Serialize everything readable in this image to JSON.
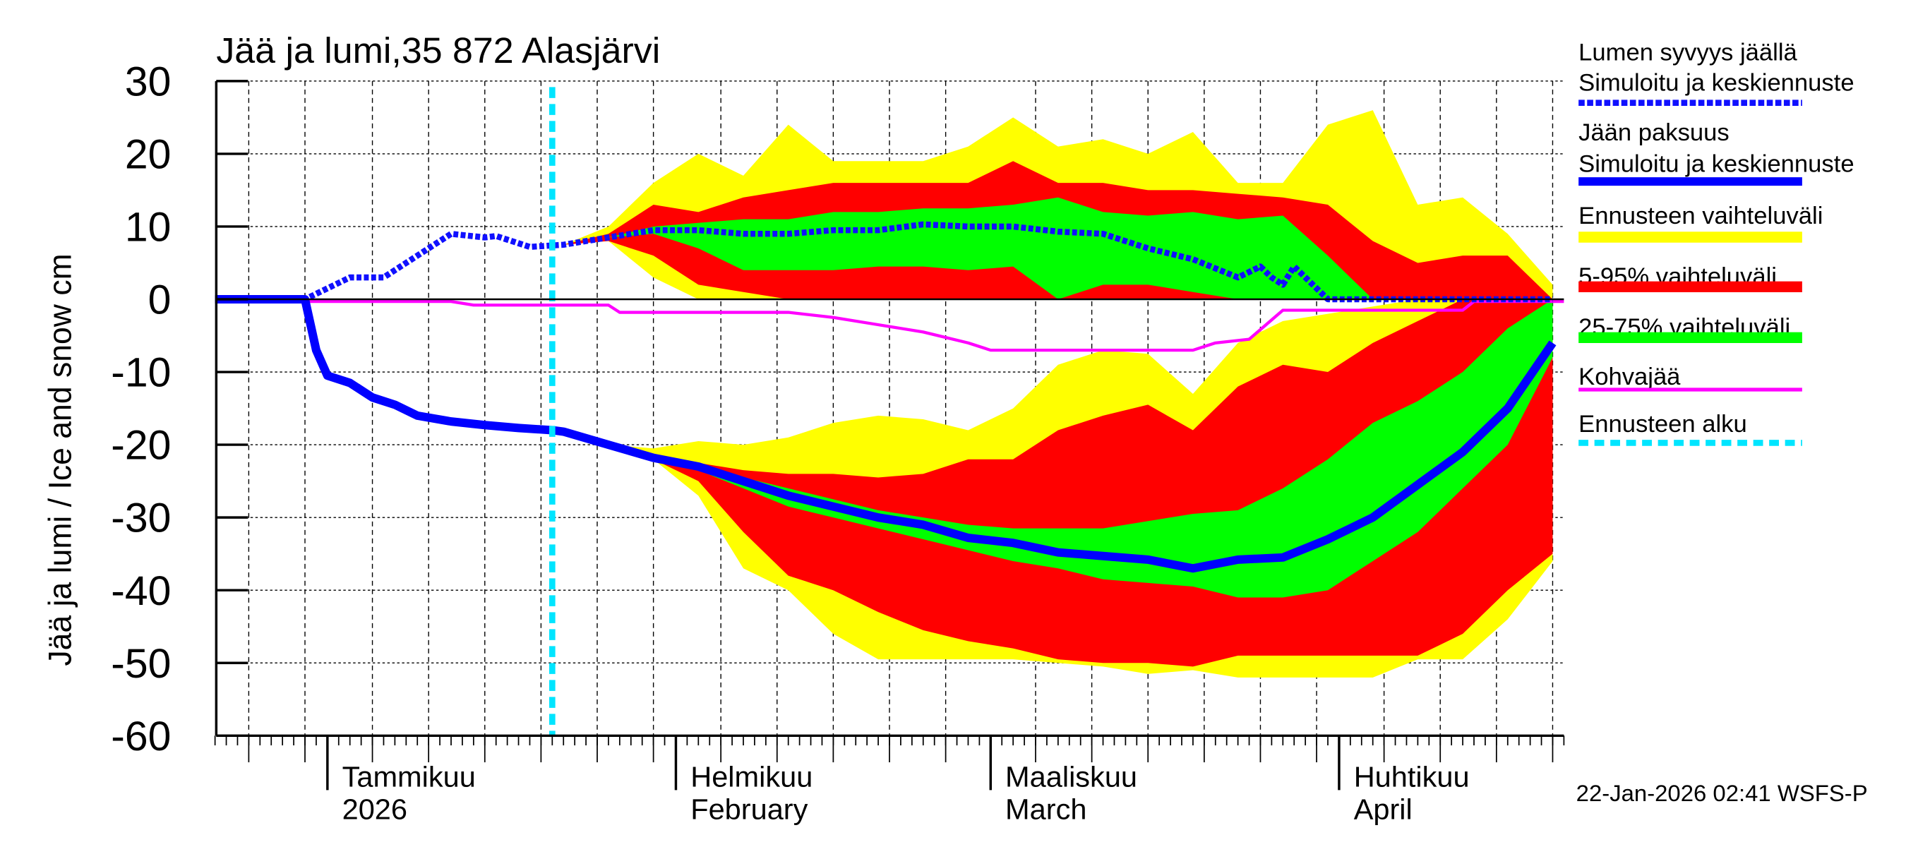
{
  "chart_data": {
    "type": "area",
    "title": "Jää ja lumi,35 872 Alasjärvi",
    "ylabel": "Jää ja lumi / Ice and snow    cm",
    "ylim": [
      -60,
      30
    ],
    "yticks": [
      30,
      20,
      10,
      0,
      -10,
      -20,
      -30,
      -40,
      -50,
      -60
    ],
    "xlim": [
      "2025-12-22",
      "2026-04-21"
    ],
    "grid": true,
    "legend_placement": "right",
    "x_month_labels": [
      {
        "date": "2026-01-01",
        "fi": "Tammikuu",
        "en": "2026"
      },
      {
        "date": "2026-02-01",
        "fi": "Helmikuu",
        "en": "February"
      },
      {
        "date": "2026-03-01",
        "fi": "Maaliskuu",
        "en": "March"
      },
      {
        "date": "2026-04-01",
        "fi": "Huhtikuu",
        "en": "April"
      }
    ],
    "forecast_start": "2026-01-21",
    "colors": {
      "snow": "#1010ff",
      "ice": "#0000ff",
      "range": "#ffff00",
      "p5_95": "#ff0000",
      "p25_75": "#00ff00",
      "slush": "#ff00ff",
      "forecast_start": "#00e5ff"
    },
    "band_dates": [
      "2026-01-22",
      "2026-01-26",
      "2026-01-30",
      "2026-02-03",
      "2026-02-07",
      "2026-02-11",
      "2026-02-15",
      "2026-02-19",
      "2026-02-23",
      "2026-02-27",
      "2026-03-03",
      "2026-03-07",
      "2026-03-11",
      "2026-03-15",
      "2026-03-19",
      "2026-03-23",
      "2026-03-27",
      "2026-03-31",
      "2026-04-04",
      "2026-04-08",
      "2026-04-12",
      "2026-04-16",
      "2026-04-20"
    ],
    "snow_bands": {
      "range_max": [
        7.5,
        10,
        16,
        20,
        17,
        24,
        19,
        19,
        19,
        21,
        25,
        21,
        22,
        20,
        23,
        16,
        16,
        24,
        26,
        13,
        14,
        9,
        2
      ],
      "range_min": [
        7.5,
        8,
        3,
        0,
        0,
        0,
        0,
        0,
        0,
        0,
        0,
        0,
        0,
        0,
        0,
        0,
        0,
        0,
        0,
        0,
        0,
        0,
        0
      ],
      "p95": [
        7.5,
        9,
        13,
        12,
        14,
        15,
        16,
        16,
        16,
        16,
        19,
        16,
        16,
        15,
        15,
        14.5,
        14,
        13,
        8,
        5,
        6,
        6,
        0
      ],
      "p5": [
        7.5,
        8,
        6,
        2,
        1,
        0,
        0,
        0,
        0,
        0,
        0,
        0,
        0,
        0,
        0,
        0,
        0,
        0,
        0,
        0,
        0,
        0,
        0
      ],
      "p75": [
        7.5,
        8.5,
        10,
        10.5,
        11,
        11,
        12,
        12,
        12.5,
        12.5,
        13,
        14,
        12,
        11.5,
        12,
        11,
        11.5,
        6,
        0,
        0,
        0,
        0,
        0
      ],
      "p25": [
        7.5,
        8.5,
        9,
        7,
        4,
        4,
        4,
        4.5,
        4.5,
        4,
        4.5,
        0,
        2,
        2,
        1,
        0,
        0,
        0,
        0,
        0,
        0,
        0,
        0
      ]
    },
    "ice_bands": {
      "range_max": [
        -18.2,
        -20,
        -20.5,
        -19.5,
        -20,
        -19,
        -17,
        -16,
        -16.5,
        -18,
        -15,
        -9,
        -7,
        -7.5,
        -13,
        -6,
        -3,
        -2,
        -1,
        0,
        0,
        0,
        0
      ],
      "range_min": [
        -18.2,
        -20,
        -22,
        -27,
        -37,
        -40,
        -46,
        -49.5,
        -49.5,
        -49.5,
        -49.5,
        -50,
        -50.5,
        -51.5,
        -51,
        -52,
        -52,
        -52,
        -52,
        -49.5,
        -49.5,
        -44,
        -36
      ],
      "p95": [
        -18.2,
        -20,
        -21.8,
        -22.5,
        -23.5,
        -24,
        -24,
        -24.5,
        -24,
        -22,
        -22,
        -18,
        -16,
        -14.5,
        -18,
        -12,
        -9,
        -10,
        -6,
        -3,
        0,
        0,
        0
      ],
      "p5": [
        -18.2,
        -20,
        -22,
        -25,
        -32,
        -38,
        -40,
        -43,
        -45.5,
        -47,
        -48,
        -49.5,
        -50,
        -50,
        -50.5,
        -49,
        -49,
        -49,
        -49,
        -49,
        -46,
        -40,
        -35
      ],
      "p75": [
        -18.2,
        -20,
        -21.5,
        -22.5,
        -24.5,
        -26,
        -27.5,
        -29,
        -30,
        -31,
        -31.5,
        -31.5,
        -31.5,
        -30.5,
        -29.5,
        -29,
        -26,
        -22,
        -17,
        -14,
        -10,
        -4,
        0
      ],
      "p25": [
        -18.2,
        -20,
        -21.8,
        -23.5,
        -26,
        -28.5,
        -30,
        -31.5,
        -33,
        -34.5,
        -36,
        -37,
        -38.5,
        -39,
        -39.5,
        -41,
        -41,
        -40,
        -36,
        -32,
        -26,
        -20,
        -8
      ]
    },
    "series": [
      {
        "name": "Lumen syvyys jäällä — Simuloitu ja keskiennuste",
        "style": "dotted",
        "x": [
          "2025-12-22",
          "2025-12-30",
          "2026-01-03",
          "2026-01-06",
          "2026-01-09",
          "2026-01-12",
          "2026-01-15",
          "2026-01-16",
          "2026-01-19",
          "2026-01-22",
          "2026-01-26",
          "2026-01-30",
          "2026-02-03",
          "2026-02-07",
          "2026-02-11",
          "2026-02-15",
          "2026-02-19",
          "2026-02-23",
          "2026-02-27",
          "2026-03-03",
          "2026-03-07",
          "2026-03-11",
          "2026-03-15",
          "2026-03-19",
          "2026-03-23",
          "2026-03-25",
          "2026-03-26",
          "2026-03-27",
          "2026-03-28",
          "2026-03-31",
          "2026-04-20"
        ],
        "y": [
          0,
          0,
          3,
          3,
          6,
          9,
          8.5,
          8.7,
          7.2,
          7.5,
          8.5,
          9.5,
          9.5,
          9,
          9,
          9.5,
          9.5,
          10.3,
          10,
          10,
          9.3,
          9,
          7,
          5.5,
          3,
          4.5,
          3,
          2,
          4.5,
          0,
          0
        ]
      },
      {
        "name": "Jään paksuus — Simuloitu ja keskiennuste",
        "style": "solid",
        "x": [
          "2025-12-22",
          "2025-12-30",
          "2025-12-31",
          "2026-01-01",
          "2026-01-03",
          "2026-01-05",
          "2026-01-07",
          "2026-01-09",
          "2026-01-12",
          "2026-01-15",
          "2026-01-18",
          "2026-01-21",
          "2026-01-22",
          "2026-01-26",
          "2026-01-30",
          "2026-02-03",
          "2026-02-07",
          "2026-02-11",
          "2026-02-15",
          "2026-02-19",
          "2026-02-23",
          "2026-02-27",
          "2026-03-03",
          "2026-03-07",
          "2026-03-11",
          "2026-03-15",
          "2026-03-19",
          "2026-03-23",
          "2026-03-27",
          "2026-03-31",
          "2026-04-04",
          "2026-04-08",
          "2026-04-12",
          "2026-04-16",
          "2026-04-20"
        ],
        "y": [
          0,
          0,
          -7,
          -10.5,
          -11.5,
          -13.5,
          -14.5,
          -16,
          -16.8,
          -17.3,
          -17.7,
          -18,
          -18.2,
          -20,
          -21.8,
          -23,
          -25,
          -27,
          -28.5,
          -30,
          -31,
          -32.8,
          -33.5,
          -34.8,
          -35.3,
          -35.8,
          -37,
          -35.8,
          -35.5,
          -33,
          -30,
          -25.5,
          -21,
          -15,
          -6
        ]
      },
      {
        "name": "Kohvajää",
        "style": "solid",
        "x": [
          "2025-12-22",
          "2026-01-12",
          "2026-01-14",
          "2026-01-26",
          "2026-01-27",
          "2026-02-11",
          "2026-02-15",
          "2026-02-19",
          "2026-02-23",
          "2026-02-27",
          "2026-03-01",
          "2026-03-19",
          "2026-03-21",
          "2026-03-24",
          "2026-03-27",
          "2026-04-12",
          "2026-04-13",
          "2026-04-21"
        ],
        "y": [
          -0.3,
          -0.3,
          -0.8,
          -0.8,
          -1.8,
          -1.8,
          -2.5,
          -3.5,
          -4.5,
          -6,
          -7,
          -7,
          -6,
          -5.5,
          -1.5,
          -1.5,
          -0.3,
          -0.3
        ]
      }
    ]
  },
  "legend": [
    {
      "line1": "Lumen syvyys jäällä",
      "line2": "Simuloitu ja keskiennuste",
      "color": "#1010ff",
      "style": "dotted"
    },
    {
      "line1": "Jään paksuus",
      "line2": "Simuloitu ja keskiennuste",
      "color": "#0000ff",
      "style": "solid"
    },
    {
      "line1": "Ennusteen vaihteluväli",
      "color": "#ffff00",
      "style": "bar"
    },
    {
      "line1": "5-95% vaihteluväli",
      "color": "#ff0000",
      "style": "bar"
    },
    {
      "line1": "25-75% vaihteluväli",
      "color": "#00ff00",
      "style": "bar"
    },
    {
      "line1": "Kohvajää",
      "color": "#ff00ff",
      "style": "solid"
    },
    {
      "line1": "Ennusteen alku",
      "color": "#00e5ff",
      "style": "dotted"
    }
  ],
  "footer": {
    "timestamp": "22-Jan-2026 02:41 WSFS-P"
  }
}
